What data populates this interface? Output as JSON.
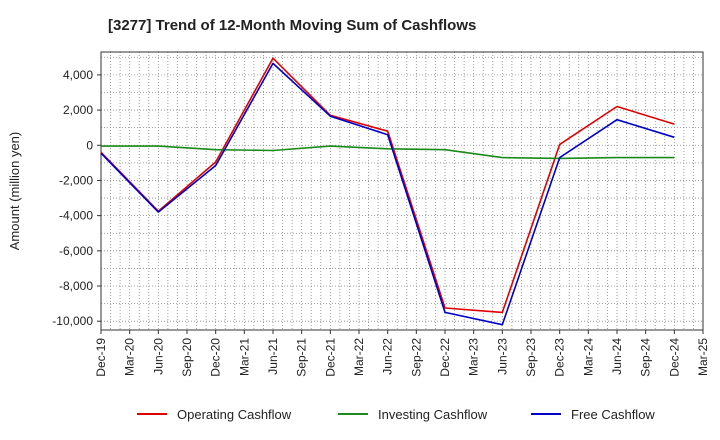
{
  "chart_data": {
    "type": "line",
    "title": "[3277]  Trend of 12-Month Moving Sum of Cashflows",
    "xlabel": "",
    "ylabel": "Amount (million yen)",
    "x": [
      "Dec-19",
      "Mar-20",
      "Jun-20",
      "Sep-20",
      "Dec-20",
      "Mar-21",
      "Jun-21",
      "Sep-21",
      "Dec-21",
      "Mar-22",
      "Jun-22",
      "Sep-22",
      "Dec-22",
      "Mar-23",
      "Jun-23",
      "Sep-23",
      "Dec-23",
      "Mar-24",
      "Jun-24",
      "Sep-24",
      "Dec-24",
      "Mar-25"
    ],
    "ylim": [
      -10500,
      5300
    ],
    "yticks": [
      4000,
      2000,
      0,
      -2000,
      -4000,
      -6000,
      -8000,
      -10000
    ],
    "ytick_labels": [
      "4,000",
      "2,000",
      "0",
      "-2,000",
      "-4,000",
      "-6,000",
      "-8,000",
      "-10,000"
    ],
    "grid": true,
    "legend_position": "bottom",
    "series": [
      {
        "name": "Operating Cashflow",
        "color": "#e00000",
        "points": [
          [
            "Dec-19",
            -400
          ],
          [
            "Jun-20",
            -3750
          ],
          [
            "Dec-20",
            -950
          ],
          [
            "Jun-21",
            4950
          ],
          [
            "Dec-21",
            1700
          ],
          [
            "Jun-22",
            800
          ],
          [
            "Dec-22",
            -9250
          ],
          [
            "Jun-23",
            -9500
          ],
          [
            "Dec-23",
            50
          ],
          [
            "Jun-24",
            2200
          ],
          [
            "Dec-24",
            1200
          ]
        ]
      },
      {
        "name": "Investing Cashflow",
        "color": "#1a8a1a",
        "points": [
          [
            "Dec-19",
            -50
          ],
          [
            "Jun-20",
            -50
          ],
          [
            "Dec-20",
            -250
          ],
          [
            "Jun-21",
            -300
          ],
          [
            "Dec-21",
            -50
          ],
          [
            "Jun-22",
            -200
          ],
          [
            "Dec-22",
            -250
          ],
          [
            "Jun-23",
            -700
          ],
          [
            "Dec-23",
            -750
          ],
          [
            "Jun-24",
            -700
          ],
          [
            "Dec-24",
            -700
          ]
        ]
      },
      {
        "name": "Free Cashflow",
        "color": "#0000cc",
        "points": [
          [
            "Dec-19",
            -450
          ],
          [
            "Jun-20",
            -3800
          ],
          [
            "Dec-20",
            -1150
          ],
          [
            "Jun-21",
            4650
          ],
          [
            "Dec-21",
            1650
          ],
          [
            "Jun-22",
            600
          ],
          [
            "Dec-22",
            -9500
          ],
          [
            "Jun-23",
            -10200
          ],
          [
            "Dec-23",
            -700
          ],
          [
            "Jun-24",
            1450
          ],
          [
            "Dec-24",
            450
          ]
        ]
      }
    ]
  }
}
